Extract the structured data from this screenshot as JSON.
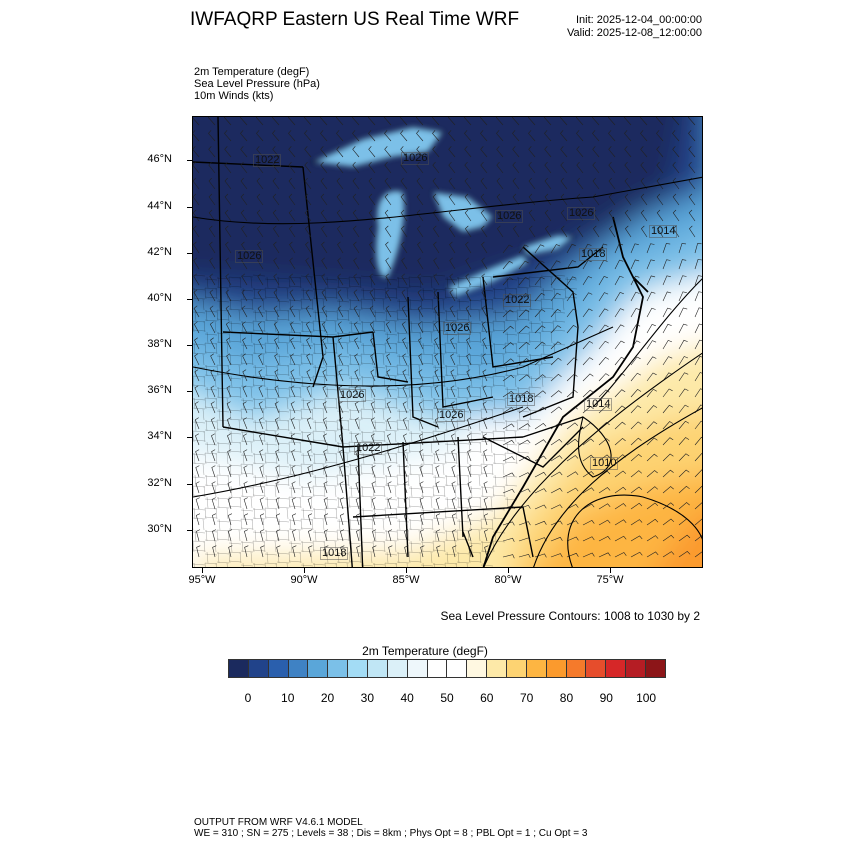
{
  "header": {
    "title": "IWFAQRP Eastern US Real Time WRF",
    "init": "Init: 2025-12-04_00:00:00",
    "valid": "Valid: 2025-12-08_12:00:00"
  },
  "fields": [
    "2m Temperature   (degF)",
    "Sea Level Pressure   (hPa)",
    "10m Winds   (kts)"
  ],
  "map": {
    "lat_labels": [
      "46°N",
      "44°N",
      "42°N",
      "40°N",
      "38°N",
      "36°N",
      "34°N",
      "32°N",
      "30°N"
    ],
    "lon_labels": [
      "95°W",
      "90°W",
      "85°W",
      "80°W",
      "75°W"
    ],
    "contour_labels": [
      "1022",
      "1026",
      "1026",
      "1026",
      "1026",
      "1018",
      "1014",
      "1022",
      "1026",
      "1026",
      "1026",
      "1018",
      "1014",
      "1010",
      "1022",
      "1018"
    ],
    "contour_note": "Sea Level Pressure Contours: 1008 to 1030 by 2"
  },
  "colorbar": {
    "title": "2m Temperature  (degF)",
    "colors": [
      "#1b2a5e",
      "#21438a",
      "#2a5fad",
      "#3f82c4",
      "#5aa6d9",
      "#7bc0e8",
      "#a3dcf5",
      "#c0e6f5",
      "#dbf0f8",
      "#eef7fb",
      "#ffffff",
      "#ffffff",
      "#fff8e1",
      "#fde9a8",
      "#fdd372",
      "#fdb542",
      "#fb9a2d",
      "#f57a2b",
      "#e64d2c",
      "#d62728",
      "#b51d24",
      "#8c1518"
    ],
    "labels": [
      "0",
      "10",
      "20",
      "30",
      "40",
      "50",
      "60",
      "70",
      "80",
      "90",
      "100"
    ]
  },
  "footer": {
    "line1": "OUTPUT FROM WRF V4.6.1 MODEL",
    "line2": "WE = 310 ; SN = 275 ; Levels = 38 ; Dis = 8km ; Phys Opt = 8 ; PBL Opt = 1 ; Cu Opt = 3"
  }
}
